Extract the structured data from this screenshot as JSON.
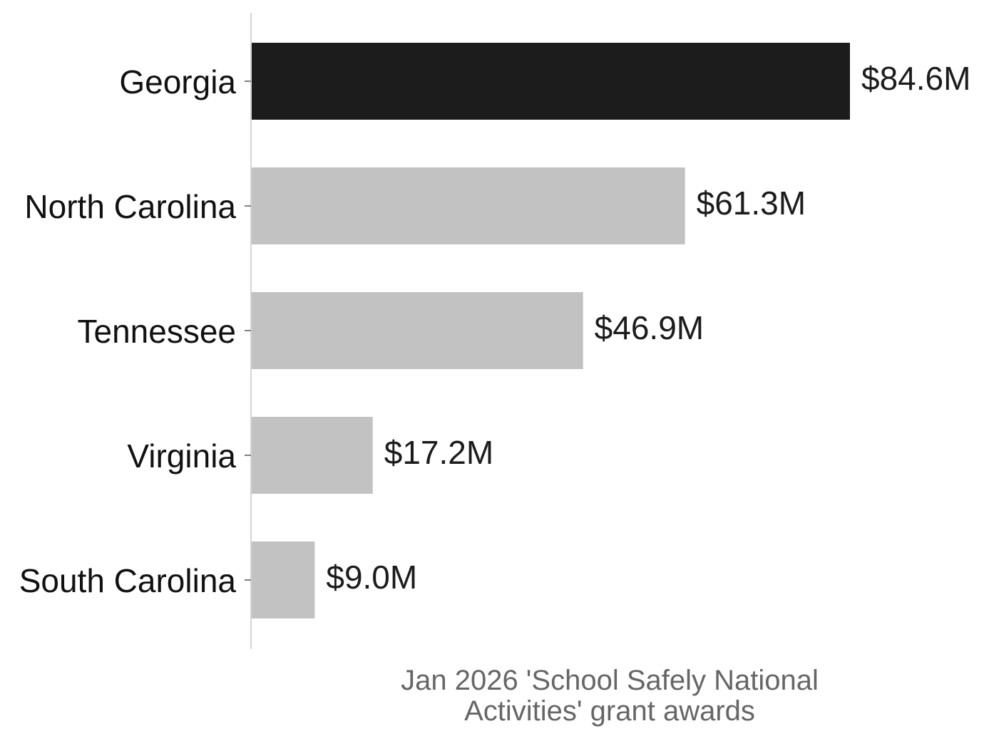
{
  "chart_data": {
    "type": "bar",
    "orientation": "horizontal",
    "categories": [
      "Georgia",
      "North Carolina",
      "Tennessee",
      "Virginia",
      "South Carolina"
    ],
    "values": [
      84.6,
      61.3,
      46.9,
      17.2,
      9.0
    ],
    "value_labels": [
      "$84.6M",
      "$61.3M",
      "$46.9M",
      "$17.2M",
      "$9.0M"
    ],
    "unit": "$M",
    "title": "",
    "xlabel_lines": [
      "Jan 2026 'School Safely National",
      "Activities' grant awards"
    ],
    "ylabel": "",
    "xlim": [
      0,
      84.6
    ],
    "grid": false,
    "legend": "none",
    "colors": {
      "highlight": "#1c1c1c",
      "default": "#c2c2c2",
      "axis": "#d4d4d4",
      "axis_label": "#666666"
    },
    "highlight_index": 0
  }
}
